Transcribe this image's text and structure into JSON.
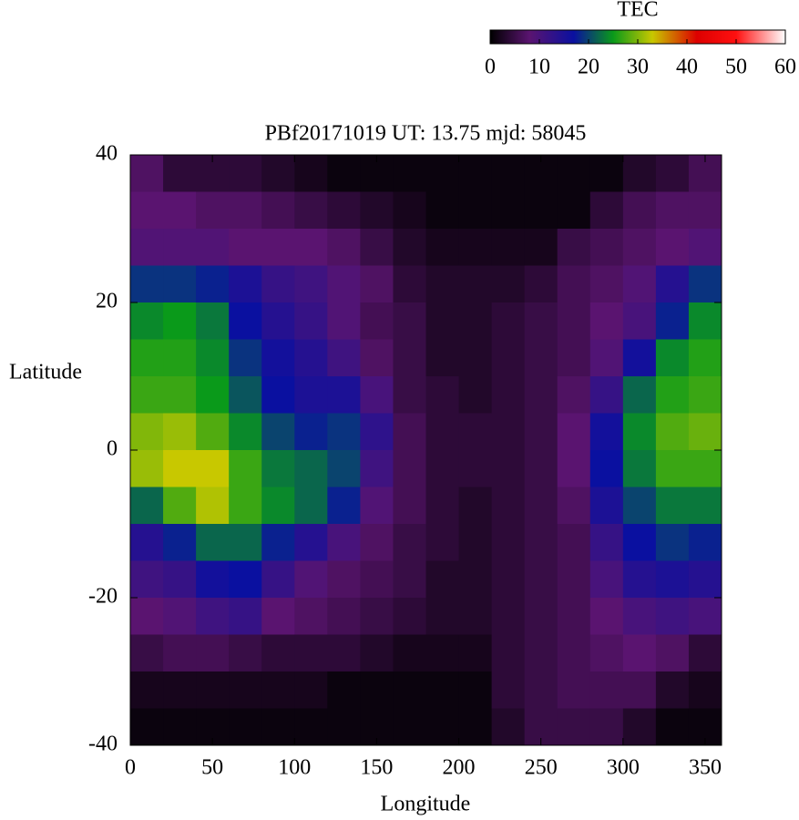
{
  "chart_data": {
    "type": "heatmap",
    "title": "PBf20171019  UT: 13.75  mjd: 58045",
    "xlabel": "Longitude",
    "ylabel": "Latitude",
    "colorbar_label": "TEC",
    "x": [
      10,
      30,
      50,
      70,
      90,
      110,
      130,
      150,
      170,
      190,
      210,
      230,
      250,
      270,
      290,
      310,
      330,
      350
    ],
    "y": [
      37.5,
      32.5,
      27.5,
      22.5,
      17.5,
      12.5,
      7.5,
      2.5,
      -2.5,
      -7.5,
      -12.5,
      -17.5,
      -22.5,
      -27.5,
      -32.5,
      -37.5
    ],
    "values": [
      [
        7,
        4,
        4,
        4,
        3,
        2,
        1,
        1,
        1,
        1,
        1,
        1,
        1,
        1,
        1,
        3,
        4,
        6
      ],
      [
        8,
        8,
        7,
        7,
        6,
        5,
        4,
        3,
        2,
        1,
        1,
        1,
        1,
        1,
        4,
        6,
        7,
        7
      ],
      [
        9,
        9,
        9,
        8,
        8,
        8,
        7,
        5,
        3,
        2,
        2,
        2,
        2,
        5,
        6,
        7,
        8,
        9
      ],
      [
        19,
        19,
        18,
        15,
        12,
        11,
        9,
        7,
        4,
        3,
        3,
        3,
        4,
        6,
        7,
        9,
        14,
        19
      ],
      [
        24,
        25,
        23,
        17,
        14,
        12,
        9,
        6,
        5,
        3,
        3,
        4,
        5,
        6,
        8,
        10,
        18,
        24
      ],
      [
        26,
        26,
        24,
        19,
        16,
        14,
        11,
        7,
        5,
        3,
        3,
        4,
        5,
        6,
        9,
        16,
        24,
        26
      ],
      [
        27,
        27,
        25,
        21,
        17,
        15,
        15,
        10,
        5,
        4,
        3,
        4,
        5,
        7,
        12,
        22,
        26,
        27
      ],
      [
        30,
        31,
        28,
        24,
        20,
        18,
        19,
        13,
        6,
        4,
        4,
        4,
        5,
        8,
        16,
        24,
        28,
        29
      ],
      [
        31,
        33,
        33,
        27,
        23,
        22,
        20,
        11,
        6,
        4,
        4,
        4,
        5,
        8,
        17,
        23,
        27,
        27
      ],
      [
        22,
        28,
        32,
        27,
        24,
        22,
        18,
        9,
        6,
        4,
        3,
        4,
        5,
        7,
        15,
        20,
        23,
        23
      ],
      [
        14,
        18,
        22,
        22,
        18,
        14,
        10,
        7,
        5,
        4,
        3,
        4,
        5,
        6,
        12,
        17,
        19,
        18
      ],
      [
        11,
        12,
        16,
        17,
        12,
        9,
        7,
        6,
        5,
        3,
        3,
        4,
        5,
        6,
        10,
        14,
        15,
        14
      ],
      [
        8,
        9,
        11,
        12,
        8,
        7,
        6,
        5,
        4,
        3,
        3,
        4,
        5,
        6,
        8,
        10,
        11,
        10
      ],
      [
        5,
        6,
        6,
        5,
        4,
        4,
        4,
        3,
        2,
        2,
        2,
        4,
        5,
        6,
        7,
        8,
        7,
        4
      ],
      [
        2,
        2,
        2,
        2,
        2,
        2,
        1,
        1,
        1,
        1,
        1,
        4,
        5,
        6,
        6,
        6,
        3,
        2
      ],
      [
        1,
        1,
        1,
        1,
        1,
        1,
        1,
        1,
        1,
        1,
        1,
        3,
        5,
        5,
        5,
        3,
        1,
        1
      ]
    ],
    "xlim": [
      0,
      360
    ],
    "xticks": [
      0,
      50,
      100,
      150,
      200,
      250,
      300,
      350
    ],
    "ylim": [
      -40,
      40
    ],
    "yticks": [
      -40,
      -20,
      0,
      20,
      40
    ],
    "clim": [
      0,
      60
    ],
    "cticks": [
      0,
      10,
      20,
      30,
      40,
      50,
      60
    ],
    "colorscale": [
      [
        0,
        "#000000"
      ],
      [
        8,
        "#5a1470"
      ],
      [
        17,
        "#0a10a0"
      ],
      [
        25,
        "#0a9a1a"
      ],
      [
        33,
        "#c8c800"
      ],
      [
        42,
        "#dd0000"
      ],
      [
        50,
        "#ff1010"
      ],
      [
        60,
        "#ffffff"
      ]
    ]
  }
}
